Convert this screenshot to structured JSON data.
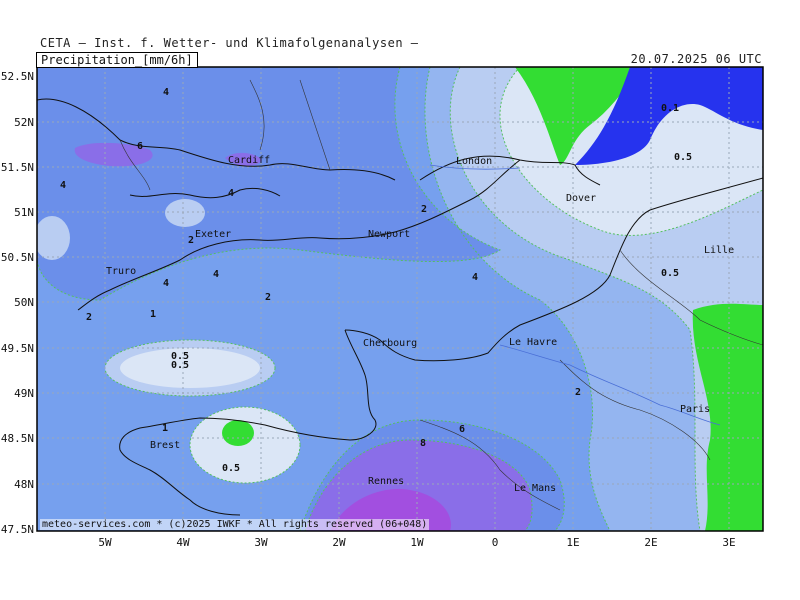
{
  "header": {
    "title": "CETA — Inst. f. Wetter- und Klimafolgenanalysen —",
    "variable": "Precipitation_[mm/6h]",
    "datetime": "20.07.2025 06 UTC"
  },
  "footer": "meteo-services.com * (c)2025 IWKF * All rights reserved (06+048)",
  "axes": {
    "lat_labels": [
      "52.5N",
      "52N",
      "51.5N",
      "51N",
      "50.5N",
      "50N",
      "49.5N",
      "49N",
      "48.5N",
      "48N",
      "47.5N"
    ],
    "lon_labels": [
      "5W",
      "4W",
      "3W",
      "2W",
      "1W",
      "0",
      "1E",
      "2E",
      "3E"
    ]
  },
  "cities": [
    {
      "name": "Cardiff"
    },
    {
      "name": "London"
    },
    {
      "name": "Dover"
    },
    {
      "name": "Exeter"
    },
    {
      "name": "Newport"
    },
    {
      "name": "Truro"
    },
    {
      "name": "Lille"
    },
    {
      "name": "Cherbourg"
    },
    {
      "name": "Le Havre"
    },
    {
      "name": "Paris"
    },
    {
      "name": "Brest"
    },
    {
      "name": "Rennes"
    },
    {
      "name": "Le Mans"
    }
  ],
  "contour_labels": [
    "4",
    "6",
    "4",
    "4",
    "2",
    "2",
    "4",
    "4",
    "4",
    "2",
    "2",
    "1",
    "0.5",
    "0.5",
    "1",
    "0.5",
    "8",
    "6",
    "2",
    "0.1",
    "0.5",
    "0.5"
  ],
  "colors": {
    "shade_0_1": "#dbe6f6",
    "shade_0_5": "#b9cdf2",
    "shade_1": "#94b5f0",
    "shade_2": "#76a0ee",
    "shade_4": "#6b8fea",
    "shade_6": "#8a6ee8",
    "shade_8": "#a24fe0",
    "dry_green": "#33dd33",
    "dry_blue": "#2633ee"
  }
}
